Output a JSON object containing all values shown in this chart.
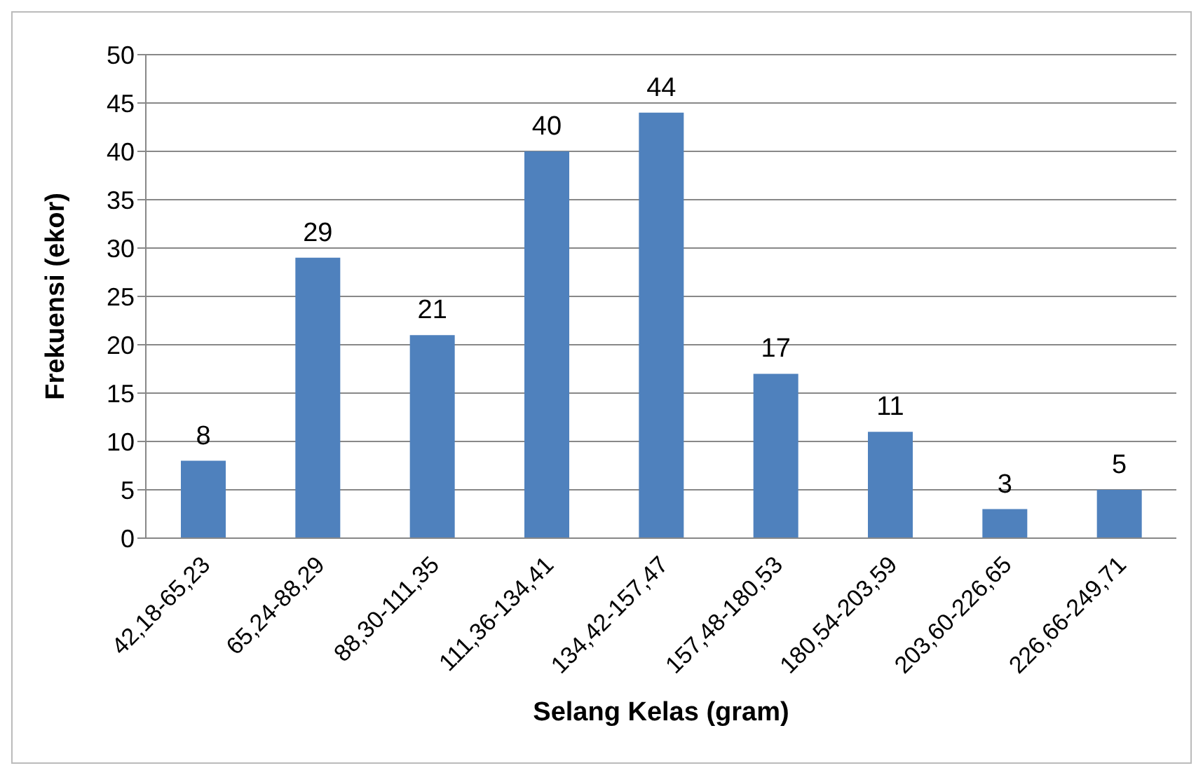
{
  "chart_data": {
    "type": "bar",
    "xlabel": "Selang Kelas (gram)",
    "ylabel": "Frekuensi (ekor)",
    "categories": [
      "42,18-65,23",
      "65,24-88,29",
      "88,30-111,35",
      "111,36-134,41",
      "134,42-157,47",
      "157,48-180,53",
      "180,54-203,59",
      "203,60-226,65",
      "226,66-249,71"
    ],
    "values": [
      8,
      29,
      21,
      40,
      44,
      17,
      11,
      3,
      5
    ],
    "color": "#4f81bd",
    "ylim": [
      0,
      50
    ],
    "yticks": [
      0,
      5,
      10,
      15,
      20,
      25,
      30,
      35,
      40,
      45,
      50
    ],
    "grid": "y",
    "legend": false,
    "data_labels": true
  }
}
